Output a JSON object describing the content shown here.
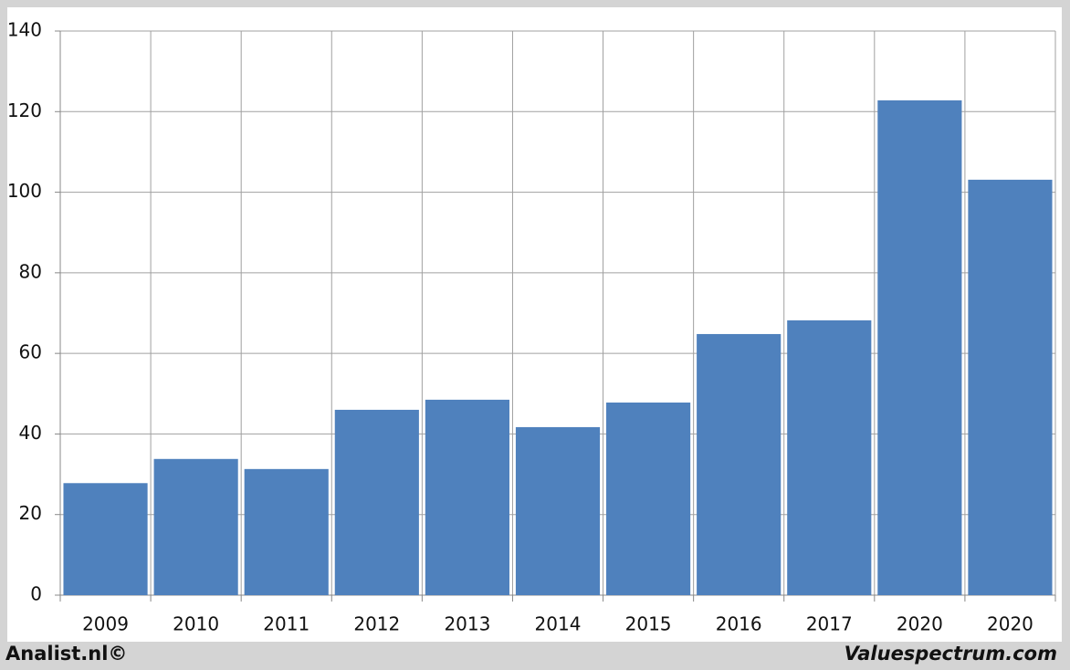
{
  "chart_data": {
    "type": "bar",
    "categories": [
      "2009",
      "2010",
      "2011",
      "2012",
      "2013",
      "2014",
      "2015",
      "2016",
      "2017",
      "2020",
      "2020"
    ],
    "values": [
      27.8,
      33.8,
      31.3,
      46.0,
      48.5,
      41.7,
      47.8,
      64.8,
      68.2,
      122.8,
      103.1
    ],
    "color": "#4f81bd",
    "ylim": [
      0,
      140
    ],
    "yticks": [
      0,
      20,
      40,
      60,
      80,
      100,
      120,
      140
    ],
    "grid": true,
    "credits": [
      "Analist.nl©",
      "Valuespectrum.com"
    ]
  }
}
